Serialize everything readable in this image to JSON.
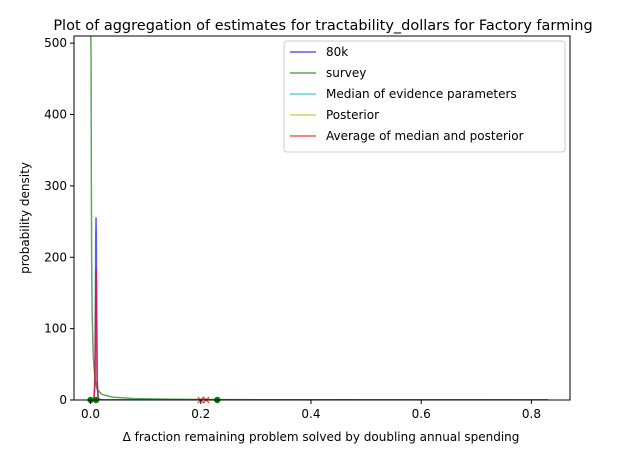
{
  "chart_data": {
    "type": "line",
    "title": "Plot of aggregation of estimates for tractability_dollars for Factory farming",
    "xlabel": "Δ fraction remaining problem solved by doubling annual spending",
    "ylabel": "probability density",
    "xlim": [
      -0.03,
      0.87
    ],
    "ylim": [
      0,
      510
    ],
    "xticks": [
      0.0,
      0.2,
      0.4,
      0.6,
      0.8
    ],
    "xtick_labels": [
      "0.0",
      "0.2",
      "0.4",
      "0.6",
      "0.8"
    ],
    "yticks": [
      0,
      100,
      200,
      300,
      400,
      500
    ],
    "ytick_labels": [
      "0",
      "100",
      "200",
      "300",
      "400",
      "500"
    ],
    "grid": false,
    "legend_position": "top-right",
    "series": [
      {
        "name": "80k",
        "color": "#0000ff",
        "x": [
          0.0,
          0.006,
          0.008,
          0.009,
          0.0095,
          0.01,
          0.0105,
          0.011,
          0.012,
          0.014,
          0.02,
          0.1,
          0.3,
          0.5,
          0.7,
          0.83
        ],
        "y": [
          0,
          0,
          30,
          150,
          230,
          255,
          230,
          150,
          30,
          2,
          0,
          0,
          0,
          0,
          0,
          0
        ]
      },
      {
        "name": "survey",
        "color": "#008000",
        "x": [
          0.0005,
          0.001,
          0.0015,
          0.002,
          0.003,
          0.005,
          0.008,
          0.012,
          0.02,
          0.04,
          0.08,
          0.15,
          0.3,
          0.5,
          0.7,
          0.83
        ],
        "y": [
          510,
          480,
          300,
          200,
          120,
          60,
          30,
          15,
          8,
          4,
          2,
          1,
          0.4,
          0.2,
          0.1,
          0.05
        ]
      },
      {
        "name": "Median of evidence parameters",
        "color": "#00bfbf",
        "x": [
          0.0,
          0.1,
          0.3,
          0.5,
          0.7,
          0.83
        ],
        "y": [
          0,
          0,
          0,
          0,
          0,
          0
        ]
      },
      {
        "name": "Posterior",
        "color": "#bfbf00",
        "x": [
          0.0,
          0.1,
          0.3,
          0.5,
          0.7,
          0.83
        ],
        "y": [
          0,
          0,
          0,
          0,
          0,
          0
        ]
      },
      {
        "name": "Average of median and posterior",
        "color": "#ff0000",
        "x": [
          0.0,
          0.006,
          0.008,
          0.009,
          0.0095,
          0.01,
          0.0105,
          0.011,
          0.012,
          0.014,
          0.02,
          0.1,
          0.3,
          0.5,
          0.7,
          0.83
        ],
        "y": [
          0,
          0,
          20,
          110,
          165,
          183,
          165,
          110,
          20,
          1,
          0,
          0,
          0,
          0,
          0,
          0
        ]
      }
    ],
    "markers": [
      {
        "x": 0.0,
        "y": 0,
        "shape": "circle",
        "color": "#008000"
      },
      {
        "x": 0.01,
        "y": 0,
        "shape": "circle",
        "color": "#008000"
      },
      {
        "x": 0.23,
        "y": 0,
        "shape": "circle",
        "color": "#008000"
      },
      {
        "x": 0.2,
        "y": 0,
        "shape": "x",
        "color": "#ff0000"
      },
      {
        "x": 0.21,
        "y": 0,
        "shape": "x",
        "color": "#ff0000"
      }
    ]
  }
}
